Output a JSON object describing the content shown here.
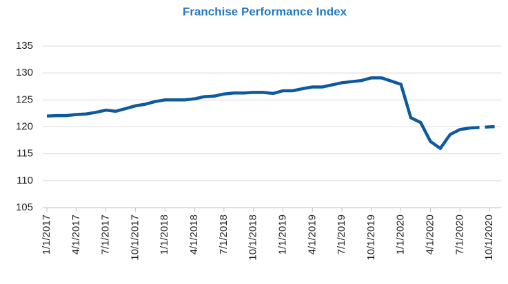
{
  "chart_data": {
    "type": "line",
    "title": "Franchise Performance Index",
    "categories": [
      "1/1/2017",
      null,
      null,
      "4/1/2017",
      null,
      null,
      "7/1/2017",
      null,
      null,
      "10/1/2017",
      null,
      null,
      "1/1/2018",
      null,
      null,
      "4/1/2018",
      null,
      null,
      "7/1/2018",
      null,
      null,
      "10/1/2018",
      null,
      null,
      "1/1/2019",
      null,
      null,
      "4/1/2019",
      null,
      null,
      "7/1/2019",
      null,
      null,
      "10/1/2019",
      null,
      null,
      "1/1/2020",
      null,
      null,
      "4/1/2020",
      null,
      null,
      "7/1/2020",
      null,
      null,
      "10/1/2020",
      null
    ],
    "series": [
      {
        "color": "#0d5a9e",
        "dash": false,
        "values": [
          122.0,
          122.1,
          122.1,
          122.3,
          122.4,
          122.7,
          123.1,
          122.9,
          123.4,
          123.9,
          124.2,
          124.7,
          125.0,
          125.0,
          125.0,
          125.2,
          125.6,
          125.7,
          126.1,
          126.3,
          126.3,
          126.4,
          126.4,
          126.2,
          126.7,
          126.7,
          127.1,
          127.4,
          127.4,
          127.8,
          128.2,
          128.4,
          128.6,
          129.1,
          129.1,
          128.5,
          127.9,
          121.7,
          120.8,
          117.3,
          116.0,
          118.6,
          119.5,
          119.8,
          null,
          null,
          null
        ]
      },
      {
        "color": "#0d5a9e",
        "dash": true,
        "values": [
          null,
          null,
          null,
          null,
          null,
          null,
          null,
          null,
          null,
          null,
          null,
          null,
          null,
          null,
          null,
          null,
          null,
          null,
          null,
          null,
          null,
          null,
          null,
          null,
          null,
          null,
          null,
          null,
          null,
          null,
          null,
          null,
          null,
          null,
          null,
          null,
          null,
          null,
          null,
          null,
          null,
          null,
          null,
          119.8,
          119.9,
          120.0,
          120.1
        ]
      }
    ],
    "ylim": [
      105,
      135
    ],
    "yticks": [
      105,
      110,
      115,
      120,
      125,
      130,
      135
    ],
    "grid": true
  }
}
